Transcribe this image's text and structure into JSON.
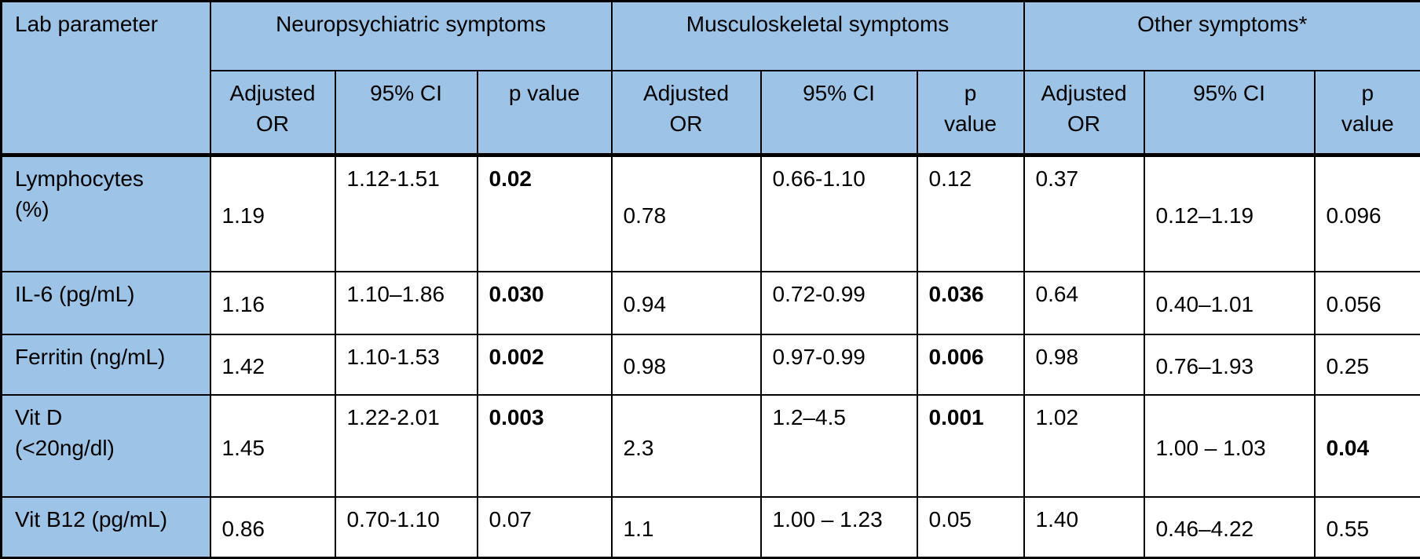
{
  "table": {
    "corner_header": "Lab parameter",
    "groups": [
      {
        "label": "Neuropsychiatric symptoms",
        "columns": [
          "Adjusted\nOR",
          "95% CI",
          "p value"
        ]
      },
      {
        "label": "Musculoskeletal symptoms",
        "columns": [
          "Adjusted\nOR",
          "95% CI",
          "p\nvalue"
        ]
      },
      {
        "label": "Other symptoms*",
        "columns": [
          "Adjusted\nOR",
          "95% CI",
          "p\nvalue"
        ]
      }
    ],
    "rows": [
      {
        "name": "Lymphocytes\n(%)",
        "cells": [
          {
            "t": "1.19",
            "b": false
          },
          {
            "t": "1.12-1.51",
            "b": false
          },
          {
            "t": "0.02",
            "b": true
          },
          {
            "t": "0.78",
            "b": false
          },
          {
            "t": "0.66-1.10",
            "b": false
          },
          {
            "t": "0.12",
            "b": false
          },
          {
            "t": "0.37",
            "b": false
          },
          {
            "t": "0.12–1.19",
            "b": false
          },
          {
            "t": "0.096",
            "b": false
          }
        ]
      },
      {
        "name": "IL-6 (pg/mL)",
        "cells": [
          {
            "t": "1.16",
            "b": false
          },
          {
            "t": "1.10–1.86",
            "b": false
          },
          {
            "t": "0.030",
            "b": true
          },
          {
            "t": "0.94",
            "b": false
          },
          {
            "t": "0.72-0.99",
            "b": false
          },
          {
            "t": "0.036",
            "b": true
          },
          {
            "t": "0.64",
            "b": false
          },
          {
            "t": "0.40–1.01",
            "b": false
          },
          {
            "t": "0.056",
            "b": false
          }
        ]
      },
      {
        "name": "Ferritin (ng/mL)",
        "cells": [
          {
            "t": "1.42",
            "b": false
          },
          {
            "t": "1.10-1.53",
            "b": false
          },
          {
            "t": "0.002",
            "b": true
          },
          {
            "t": "0.98",
            "b": false
          },
          {
            "t": "0.97-0.99",
            "b": false
          },
          {
            "t": "0.006",
            "b": true
          },
          {
            "t": "0.98",
            "b": false
          },
          {
            "t": "0.76–1.93",
            "b": false
          },
          {
            "t": "0.25",
            "b": false
          }
        ]
      },
      {
        "name": "Vit D\n(<20ng/dl)",
        "cells": [
          {
            "t": "1.45",
            "b": false
          },
          {
            "t": "1.22-2.01",
            "b": false
          },
          {
            "t": "0.003",
            "b": true
          },
          {
            "t": "2.3",
            "b": false
          },
          {
            "t": "1.2–4.5",
            "b": false
          },
          {
            "t": "0.001",
            "b": true
          },
          {
            "t": "1.02",
            "b": false
          },
          {
            "t": "1.00 – 1.03",
            "b": false
          },
          {
            "t": "0.04",
            "b": true
          }
        ]
      },
      {
        "name": "Vit B12 (pg/mL)",
        "cells": [
          {
            "t": "0.86",
            "b": false
          },
          {
            "t": "0.70-1.10",
            "b": false
          },
          {
            "t": "0.07",
            "b": false
          },
          {
            "t": "1.1",
            "b": false
          },
          {
            "t": "1.00 – 1.23",
            "b": false
          },
          {
            "t": "0.05",
            "b": false
          },
          {
            "t": "1.40",
            "b": false
          },
          {
            "t": "0.46–4.22",
            "b": false
          },
          {
            "t": "0.55",
            "b": false
          }
        ]
      }
    ],
    "colors": {
      "header_fill": "#9DC3E6",
      "border": "#000000",
      "body_fill": "#FFFFFF",
      "text": "#000000"
    }
  }
}
